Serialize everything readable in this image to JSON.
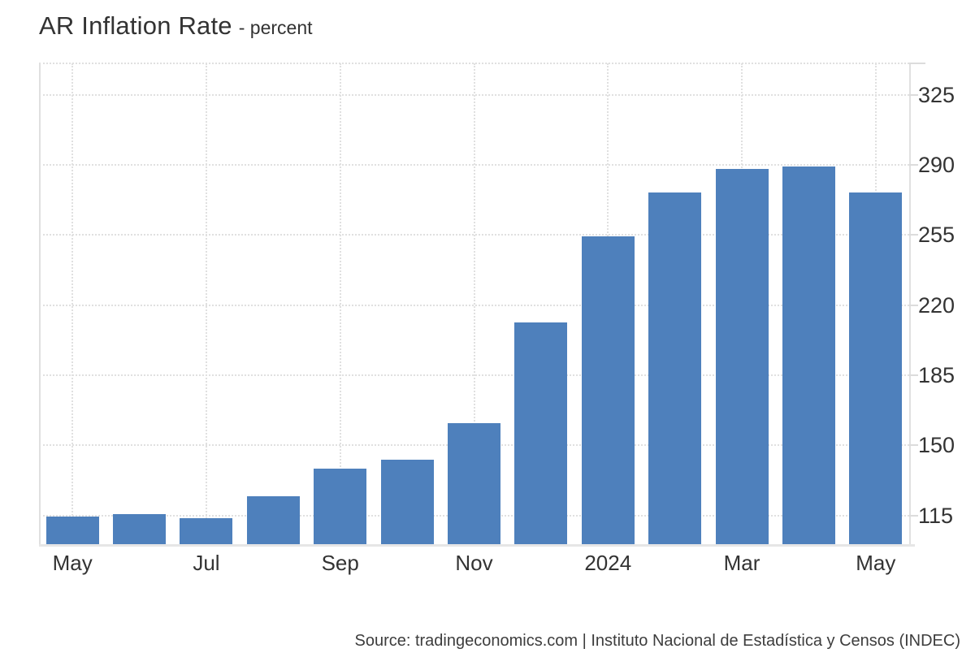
{
  "header": {
    "title": "AR Inflation Rate",
    "subtitle": "- percent"
  },
  "footer": {
    "source": "Source: tradingeconomics.com | Instituto Nacional de Estadística y Censos (INDEC)"
  },
  "chart_data": {
    "type": "bar",
    "title": "AR Inflation Rate",
    "subtitle": "- percent",
    "ylabel": "percent",
    "xlabel": "",
    "categories": [
      "May 2023",
      "Jun 2023",
      "Jul 2023",
      "Aug 2023",
      "Sep 2023",
      "Oct 2023",
      "Nov 2023",
      "Dec 2023",
      "Jan 2024",
      "Feb 2024",
      "Mar 2024",
      "Apr 2024",
      "May 2024"
    ],
    "values": [
      114.2,
      115.6,
      113.4,
      124.4,
      138.3,
      142.7,
      160.9,
      211.4,
      254.2,
      276.2,
      287.9,
      289.4,
      276.4
    ],
    "x_ticks": [
      {
        "index": 0,
        "label": "May"
      },
      {
        "index": 2,
        "label": "Jul"
      },
      {
        "index": 4,
        "label": "Sep"
      },
      {
        "index": 6,
        "label": "Nov"
      },
      {
        "index": 8,
        "label": "2024"
      },
      {
        "index": 10,
        "label": "Mar"
      },
      {
        "index": 12,
        "label": "May"
      }
    ],
    "y_ticks": [
      115,
      150,
      185,
      220,
      255,
      290,
      325
    ],
    "ylim": [
      100.6,
      340.8
    ],
    "grid": true,
    "legend": "none",
    "axis_side": "right",
    "colors": {
      "bar": "#4e80bc",
      "grid": "#e0e0e0",
      "axis": "#e0e0e0",
      "baseline": "#e6e6e6",
      "text": "#333333",
      "source_text": "#3d3d3d"
    }
  }
}
